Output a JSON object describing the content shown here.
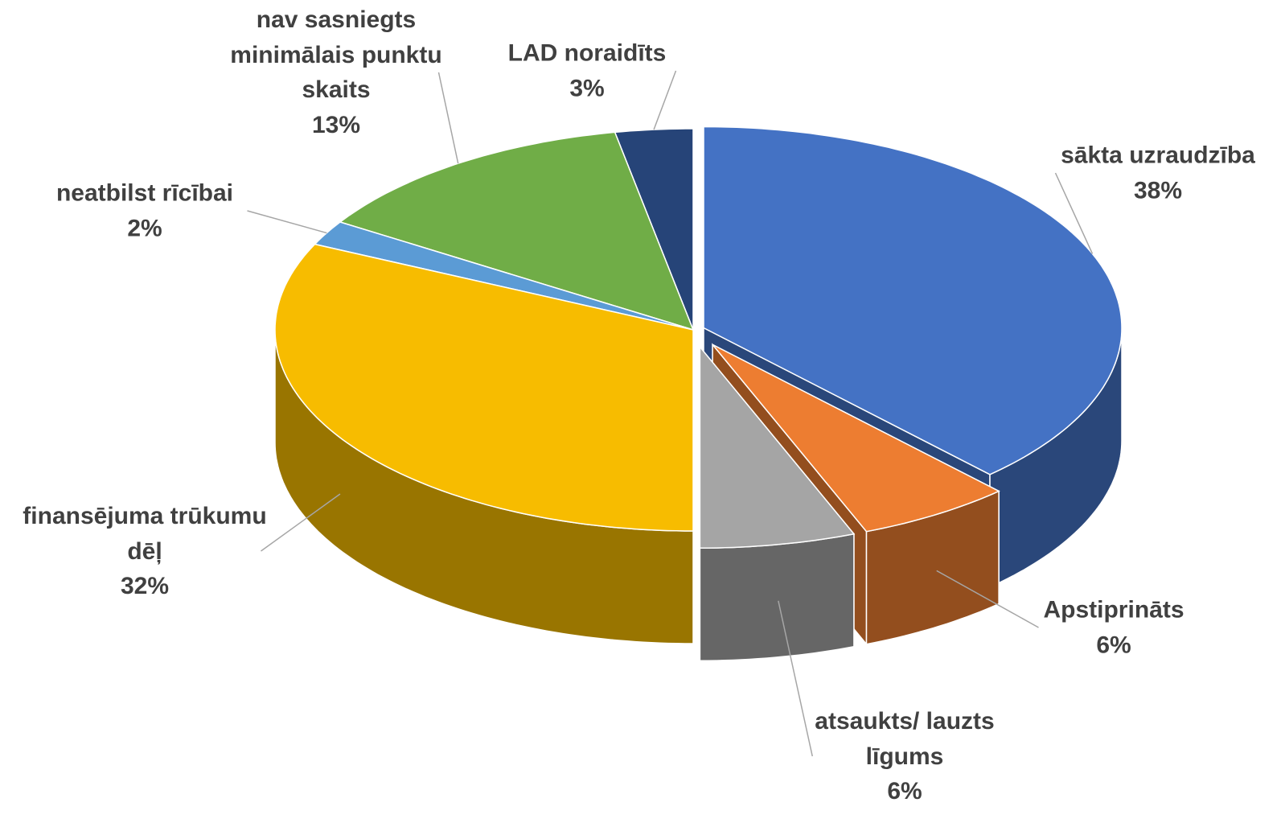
{
  "chart_data": {
    "type": "pie3d",
    "categories": [
      "sākta uzraudzība",
      "Apstiprināts",
      "atsaukts/ lauzts līgums",
      "finansējuma trūkumu dēļ",
      "neatbilst rīcībai",
      "nav sasniegts minimālais punktu skaits",
      "LAD noraidīts"
    ],
    "values": [
      38,
      6,
      6,
      32,
      2,
      13,
      3
    ],
    "value_labels": [
      "38%",
      "6%",
      "6%",
      "32%",
      "2%",
      "13%",
      "3%"
    ],
    "colors": [
      "#4472c4",
      "#ed7d31",
      "#a5a5a5",
      "#f7bc00",
      "#5b9bd5",
      "#70ad47",
      "#264478"
    ]
  }
}
